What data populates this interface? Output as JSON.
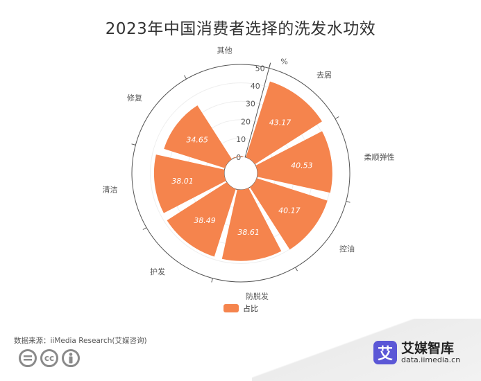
{
  "chart_data": {
    "type": "polar-bar",
    "title": "2023年中国消费者选择的洗发水功效",
    "unit": "%",
    "radial_axis": {
      "min": 0,
      "max": 50,
      "ticks": [
        0,
        10,
        20,
        30,
        40,
        50
      ]
    },
    "categories": [
      "去屑",
      "柔顺弹性",
      "控油",
      "防脱发",
      "护发",
      "清洁",
      "修复",
      "其他"
    ],
    "series": [
      {
        "name": "占比",
        "values": [
          43.17,
          40.53,
          40.17,
          38.61,
          38.49,
          38.01,
          34.65,
          0.36
        ]
      }
    ],
    "colors": {
      "bar": "#f5844d",
      "axis": "#555555",
      "grid": "#eeeeee"
    }
  },
  "source": "数据来源：iiMedia Research(艾媒咨询)",
  "brand": {
    "logo_char": "艾",
    "name": "艾媒智库",
    "url": "data.iimedia.cn"
  },
  "license_icons": [
    "equal-icon",
    "cc-icon",
    "person-icon"
  ]
}
